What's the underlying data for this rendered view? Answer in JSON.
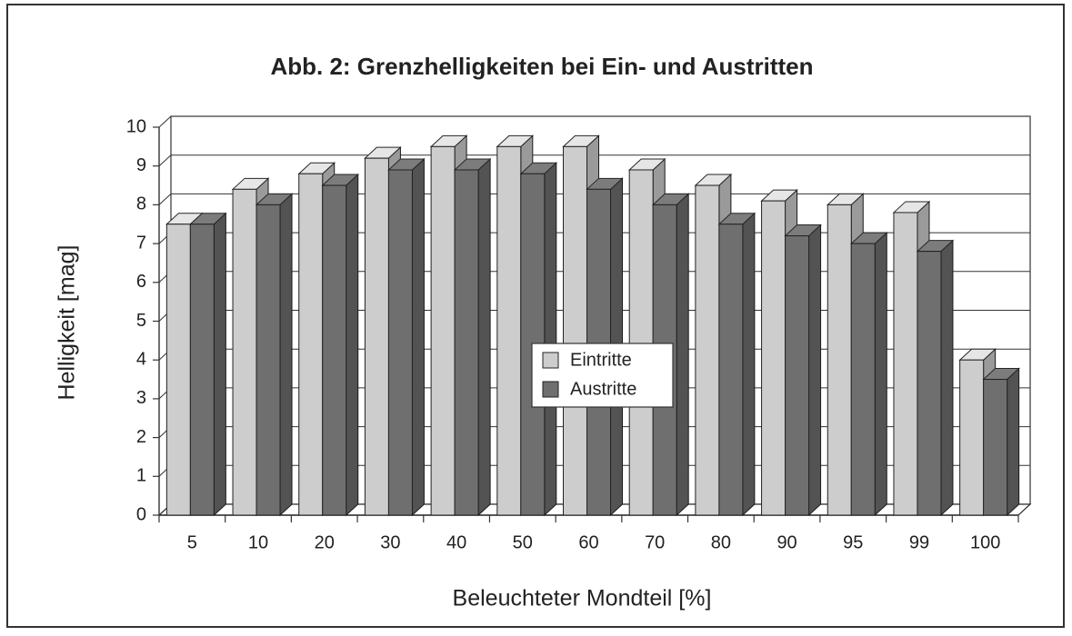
{
  "chart_data": {
    "type": "bar3d",
    "title": "Abb. 2: Grenzhelligkeiten bei Ein- und Austritten",
    "x_label": "Beleuchteter Mondteil [%]",
    "y_label": "Helligkeit [mag]",
    "categories": [
      "5",
      "10",
      "20",
      "30",
      "40",
      "50",
      "60",
      "70",
      "80",
      "90",
      "95",
      "99",
      "100"
    ],
    "series": [
      {
        "name": "Eintritte",
        "color": "#cdcdcd",
        "values": [
          7.5,
          8.4,
          8.8,
          9.2,
          9.5,
          9.5,
          9.5,
          8.9,
          8.5,
          8.1,
          8.0,
          7.8,
          4.0
        ]
      },
      {
        "name": "Austritte",
        "color": "#6f6f6f",
        "values": [
          7.5,
          8.0,
          8.5,
          8.9,
          8.9,
          8.8,
          8.4,
          8.0,
          7.5,
          7.2,
          7.0,
          6.8,
          3.5
        ]
      }
    ],
    "ylim": [
      0,
      10
    ],
    "yticks": [
      0,
      1,
      2,
      3,
      4,
      5,
      6,
      7,
      8,
      9,
      10
    ],
    "grid": true
  }
}
